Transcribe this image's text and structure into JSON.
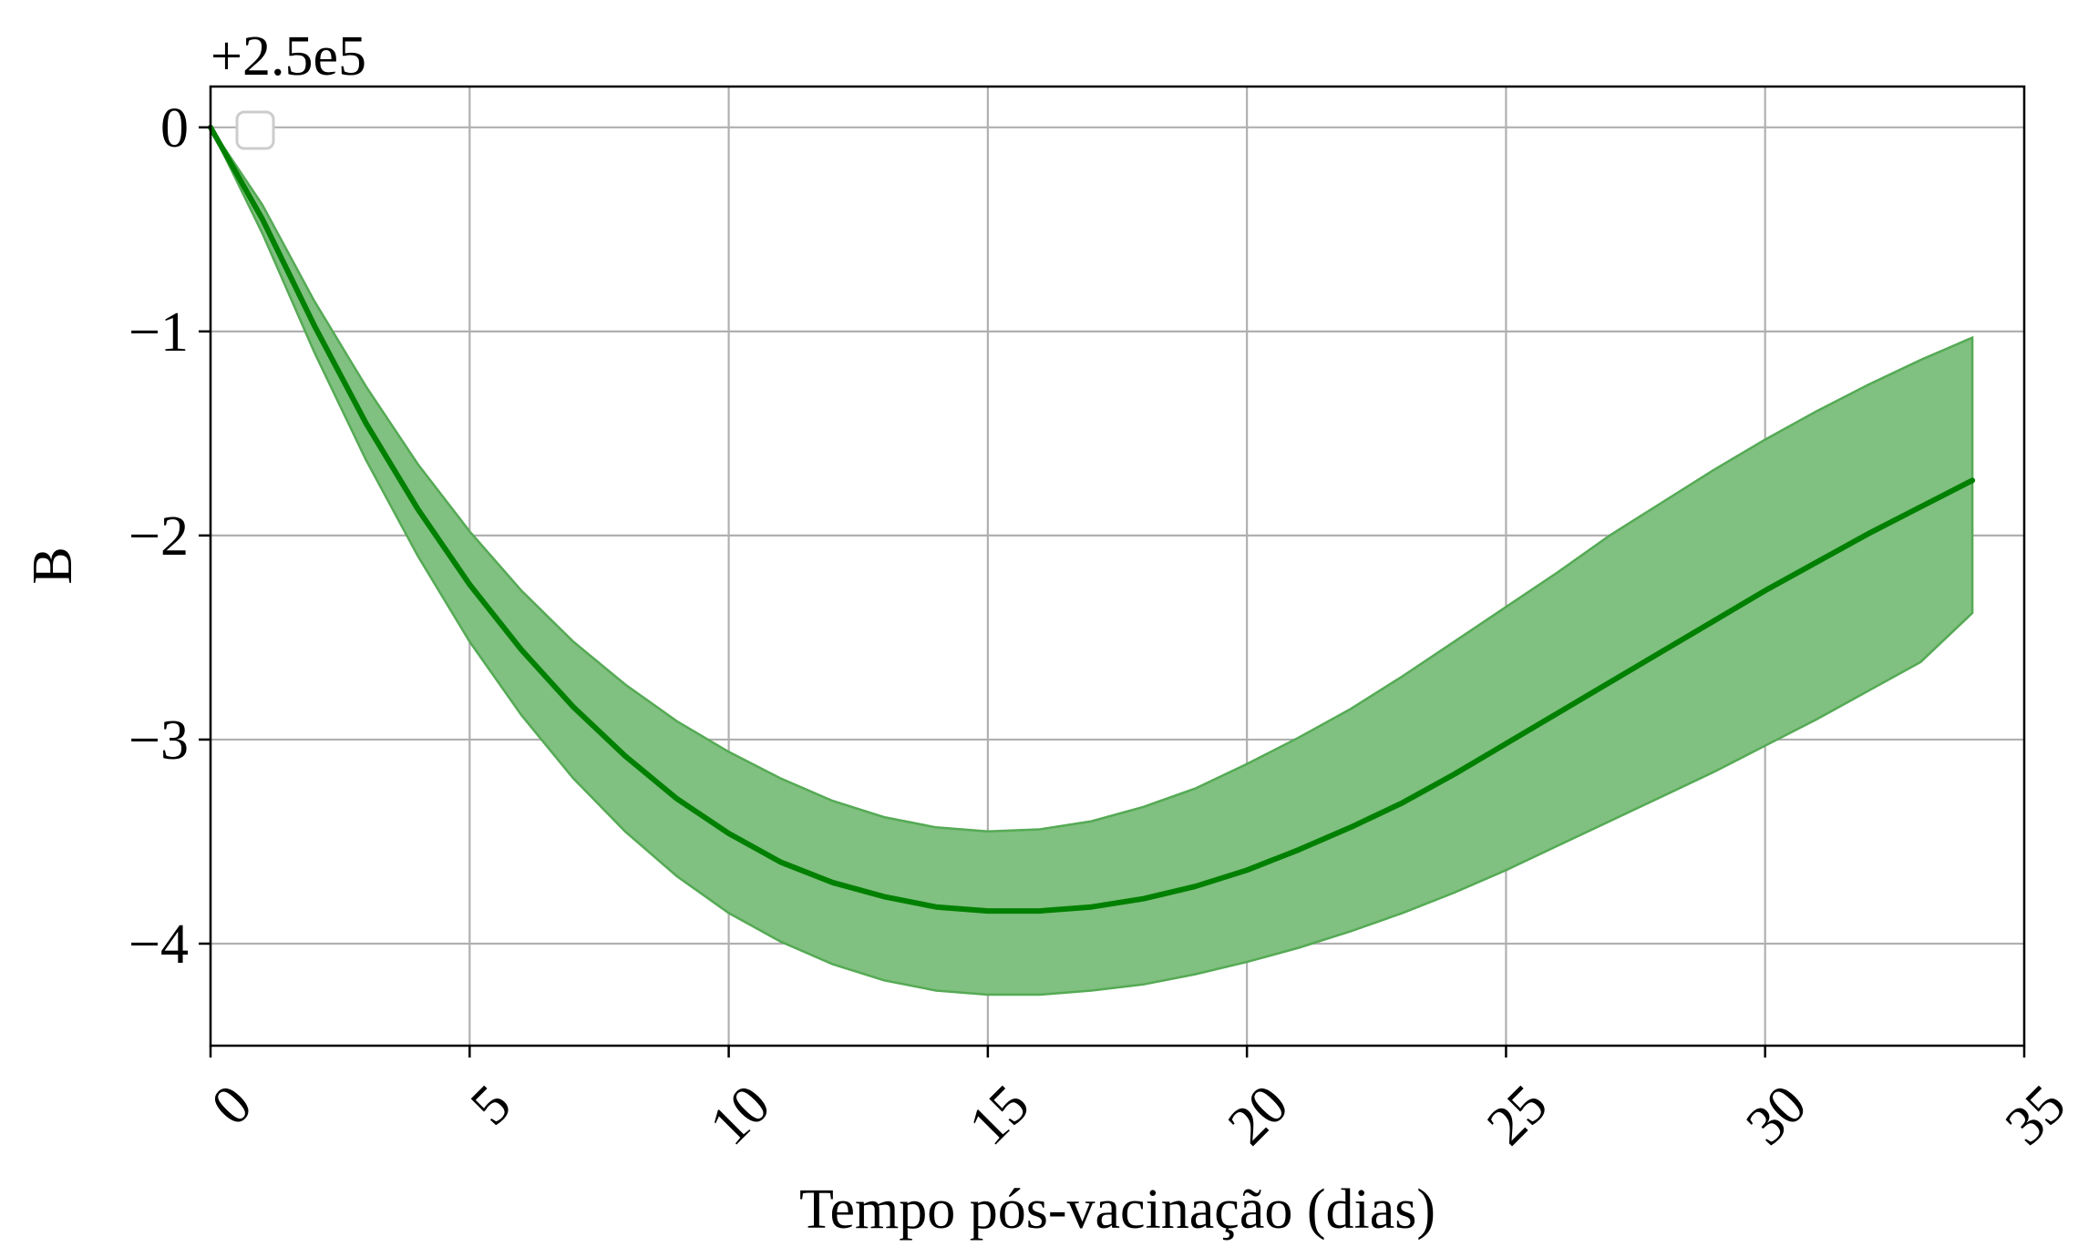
{
  "chart_data": {
    "type": "line",
    "title": "",
    "xlabel": "Tempo pós-vacinação (dias)",
    "ylabel": "B",
    "offset_text": "+2.5e5",
    "xlim": [
      0,
      35
    ],
    "ylim": [
      -4.5,
      0.2
    ],
    "xticks": [
      0,
      5,
      10,
      15,
      20,
      25,
      30,
      35
    ],
    "yticks": [
      0,
      -1,
      -2,
      -3,
      -4
    ],
    "ytick_labels": [
      "0",
      "−1",
      "−2",
      "−3",
      "−4"
    ],
    "grid": true,
    "legend": {
      "position": "upper-left",
      "entries": []
    },
    "colors": {
      "line": "#008000",
      "band": "#80c080",
      "band_edge": "#55aa55",
      "grid": "#b0b0b0"
    },
    "series": [
      {
        "name": "mean",
        "x": [
          0,
          1,
          2,
          3,
          4,
          5,
          6,
          7,
          8,
          9,
          10,
          11,
          12,
          13,
          14,
          15,
          16,
          17,
          18,
          19,
          20,
          21,
          22,
          23,
          24,
          25,
          26,
          27,
          28,
          29,
          30,
          31,
          32,
          33,
          34
        ],
        "y": [
          0,
          -0.45,
          -0.97,
          -1.45,
          -1.87,
          -2.24,
          -2.56,
          -2.84,
          -3.08,
          -3.29,
          -3.46,
          -3.6,
          -3.7,
          -3.77,
          -3.82,
          -3.84,
          -3.84,
          -3.82,
          -3.78,
          -3.72,
          -3.64,
          -3.54,
          -3.43,
          -3.31,
          -3.17,
          -3.02,
          -2.87,
          -2.72,
          -2.57,
          -2.42,
          -2.27,
          -2.13,
          -1.99,
          -1.86,
          -1.73
        ]
      },
      {
        "name": "upper",
        "x": [
          0,
          1,
          2,
          3,
          4,
          5,
          6,
          7,
          8,
          9,
          10,
          11,
          12,
          13,
          14,
          15,
          16,
          17,
          18,
          19,
          20,
          21,
          22,
          23,
          24,
          25,
          26,
          27,
          28,
          29,
          30,
          31,
          32,
          33,
          34
        ],
        "y": [
          0,
          -0.38,
          -0.85,
          -1.27,
          -1.65,
          -1.98,
          -2.27,
          -2.52,
          -2.73,
          -2.91,
          -3.06,
          -3.19,
          -3.3,
          -3.38,
          -3.43,
          -3.45,
          -3.44,
          -3.4,
          -3.33,
          -3.24,
          -3.12,
          -2.99,
          -2.85,
          -2.69,
          -2.52,
          -2.35,
          -2.18,
          -2.0,
          -1.84,
          -1.68,
          -1.53,
          -1.39,
          -1.26,
          -1.14,
          -1.03
        ]
      },
      {
        "name": "lower",
        "x": [
          0,
          1,
          2,
          3,
          4,
          5,
          6,
          7,
          8,
          9,
          10,
          11,
          12,
          13,
          14,
          15,
          16,
          17,
          18,
          19,
          20,
          21,
          22,
          23,
          24,
          25,
          26,
          27,
          28,
          29,
          30,
          31,
          32,
          33,
          34
        ],
        "y": [
          0,
          -0.52,
          -1.1,
          -1.63,
          -2.1,
          -2.52,
          -2.88,
          -3.19,
          -3.45,
          -3.67,
          -3.85,
          -3.99,
          -4.1,
          -4.18,
          -4.23,
          -4.25,
          -4.25,
          -4.23,
          -4.2,
          -4.15,
          -4.09,
          -4.02,
          -3.94,
          -3.85,
          -3.75,
          -3.64,
          -3.52,
          -3.4,
          -3.28,
          -3.16,
          -3.03,
          -2.9,
          -2.76,
          -2.62,
          -2.38
        ]
      }
    ]
  }
}
